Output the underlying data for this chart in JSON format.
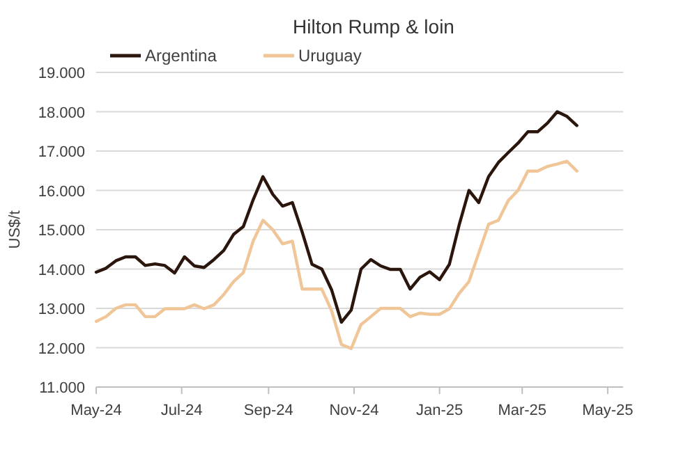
{
  "chart_data": {
    "type": "line",
    "title": "Hilton Rump & loin",
    "ylabel": "US$/t",
    "x": [
      "2024-05-01",
      "2024-05-08",
      "2024-05-15",
      "2024-05-22",
      "2024-05-29",
      "2024-06-05",
      "2024-06-12",
      "2024-06-19",
      "2024-06-26",
      "2024-07-03",
      "2024-07-10",
      "2024-07-17",
      "2024-07-24",
      "2024-07-31",
      "2024-08-07",
      "2024-08-14",
      "2024-08-21",
      "2024-08-28",
      "2024-09-04",
      "2024-09-11",
      "2024-09-18",
      "2024-09-25",
      "2024-10-02",
      "2024-10-09",
      "2024-10-16",
      "2024-10-23",
      "2024-10-30",
      "2024-11-06",
      "2024-11-13",
      "2024-11-20",
      "2024-11-27",
      "2024-12-04",
      "2024-12-11",
      "2024-12-18",
      "2024-12-25",
      "2025-01-01",
      "2025-01-08",
      "2025-01-15",
      "2025-01-22",
      "2025-01-29",
      "2025-02-05",
      "2025-02-12",
      "2025-02-19",
      "2025-02-26",
      "2025-03-05",
      "2025-03-12",
      "2025-03-19",
      "2025-03-26",
      "2025-04-02",
      "2025-04-09"
    ],
    "series": [
      {
        "name": "Argentina",
        "color": "#2b160e",
        "values": [
          13.92,
          14.02,
          14.21,
          14.31,
          14.31,
          14.09,
          14.13,
          14.09,
          13.9,
          14.31,
          14.08,
          14.04,
          14.24,
          14.47,
          14.88,
          15.08,
          15.76,
          16.35,
          15.9,
          15.6,
          15.69,
          14.94,
          14.12,
          14.0,
          13.47,
          12.65,
          12.96,
          14.0,
          14.24,
          14.08,
          13.99,
          13.99,
          13.49,
          13.79,
          13.93,
          13.73,
          14.12,
          15.12,
          16.0,
          15.69,
          16.35,
          16.71,
          16.96,
          17.2,
          17.49,
          17.49,
          17.71,
          18.0,
          17.88,
          17.65
        ]
      },
      {
        "name": "Uruguay",
        "color": "#f0c597",
        "values": [
          12.67,
          12.79,
          13.0,
          13.09,
          13.09,
          12.79,
          12.79,
          12.99,
          12.99,
          12.99,
          13.09,
          12.99,
          13.09,
          13.35,
          13.68,
          13.91,
          14.71,
          15.24,
          15.0,
          14.64,
          14.71,
          13.49,
          13.49,
          13.49,
          12.94,
          12.08,
          11.98,
          12.59,
          12.79,
          13.0,
          13.0,
          13.0,
          12.79,
          12.88,
          12.85,
          12.85,
          12.99,
          13.38,
          13.68,
          14.41,
          15.14,
          15.24,
          15.74,
          16.0,
          16.49,
          16.49,
          16.61,
          16.67,
          16.74,
          16.49
        ]
      }
    ],
    "xlim": [
      "2024-05-01",
      "2025-05-12"
    ],
    "xticks": [
      {
        "value": "2024-05-01",
        "label": "May-24"
      },
      {
        "value": "2024-07-01",
        "label": "Jul-24"
      },
      {
        "value": "2024-09-01",
        "label": "Sep-24"
      },
      {
        "value": "2024-11-01",
        "label": "Nov-24"
      },
      {
        "value": "2025-01-01",
        "label": "Jan-25"
      },
      {
        "value": "2025-03-01",
        "label": "Mar-25"
      },
      {
        "value": "2025-05-01",
        "label": "May-25"
      }
    ],
    "ylim": [
      11,
      19
    ],
    "yticks": [
      {
        "value": 11,
        "label": "11.000"
      },
      {
        "value": 12,
        "label": "12.000"
      },
      {
        "value": 13,
        "label": "13.000"
      },
      {
        "value": 14,
        "label": "14.000"
      },
      {
        "value": 15,
        "label": "15.000"
      },
      {
        "value": 16,
        "label": "16.000"
      },
      {
        "value": 17,
        "label": "17.000"
      },
      {
        "value": 18,
        "label": "18.000"
      },
      {
        "value": 19,
        "label": "19.000"
      }
    ],
    "grid": "y",
    "legend": "top left",
    "marker": "none",
    "line_style": "solid"
  }
}
